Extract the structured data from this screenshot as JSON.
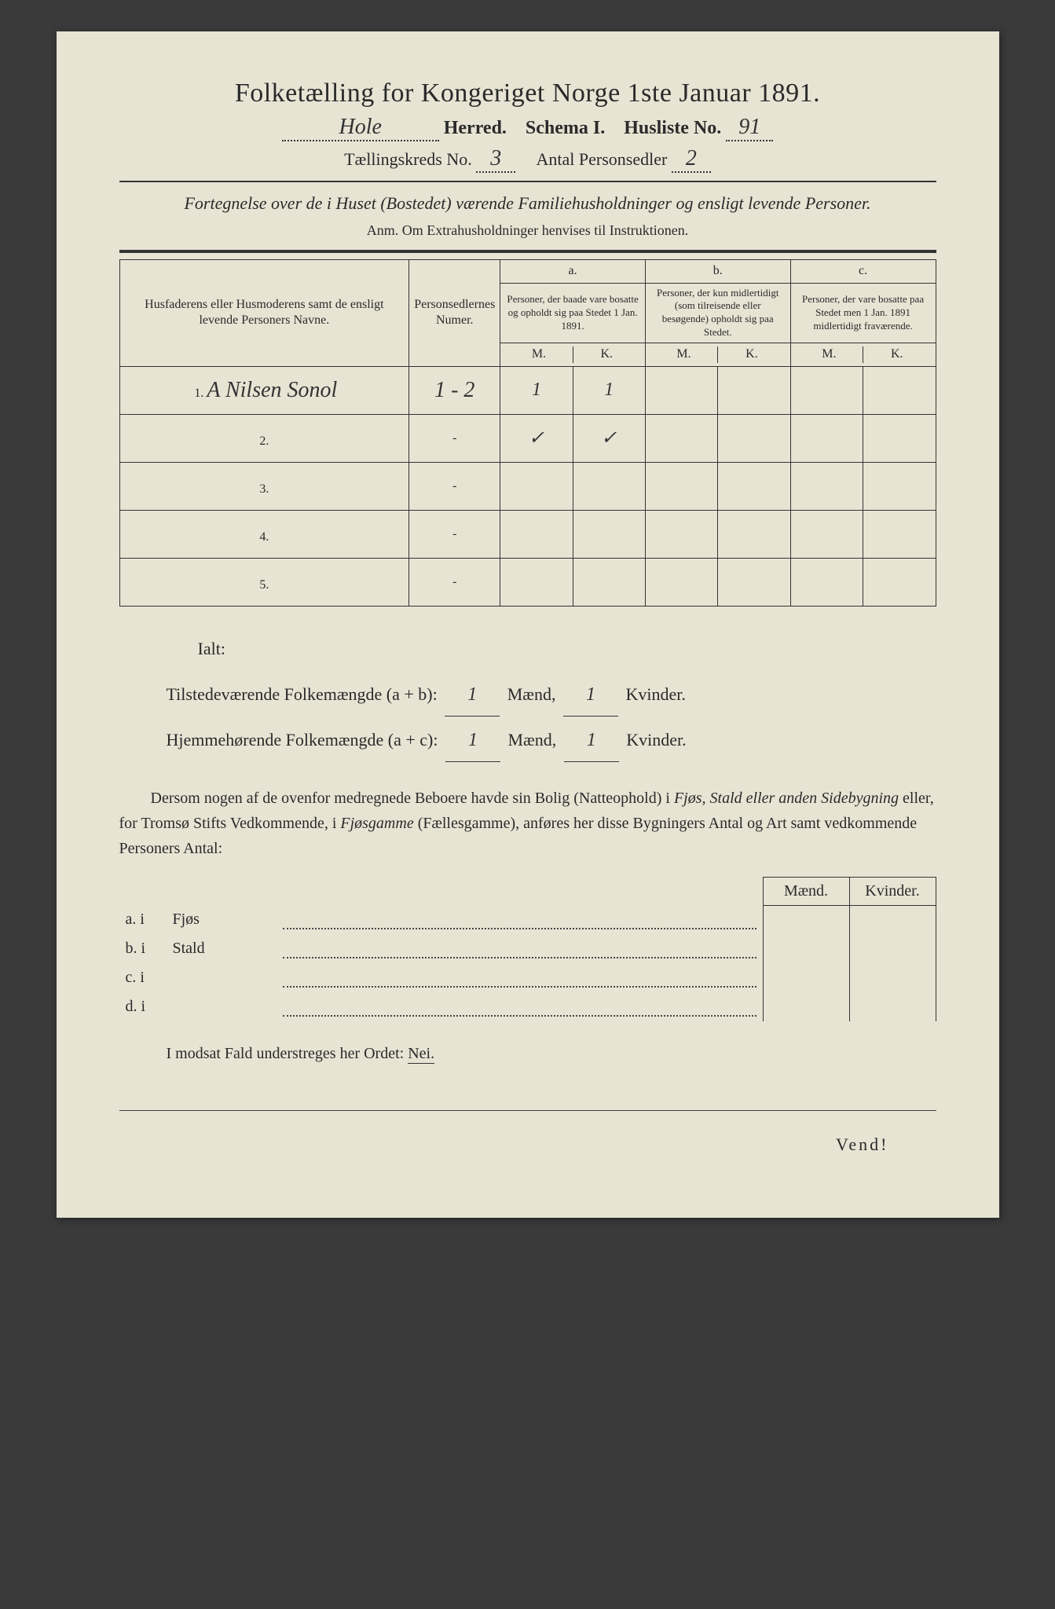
{
  "title": "Folketælling for Kongeriget Norge 1ste Januar 1891.",
  "header": {
    "herred_value": "Hole",
    "herred_label": "Herred.",
    "schema_label": "Schema I.",
    "husliste_label": "Husliste No.",
    "husliste_value": "91",
    "taellingskreds_label": "Tællingskreds No.",
    "taellingskreds_value": "3",
    "antal_label": "Antal Personsedler",
    "antal_value": "2"
  },
  "fortegnelse": "Fortegnelse over de i Huset (Bostedet) værende Familiehusholdninger og ensligt levende Personer.",
  "anm": "Anm. Om Extrahusholdninger henvises til Instruktionen.",
  "table": {
    "col1": "Husfaderens eller Husmoderens samt de ensligt levende Personers Navne.",
    "col2": "Personsedlernes Numer.",
    "col_a_label": "a.",
    "col_a": "Personer, der baade vare bosatte og opholdt sig paa Stedet 1 Jan. 1891.",
    "col_b_label": "b.",
    "col_b": "Personer, der kun midlertidigt (som tilreisende eller besøgende) opholdt sig paa Stedet.",
    "col_c_label": "c.",
    "col_c": "Personer, der vare bosatte paa Stedet men 1 Jan. 1891 midlertidigt fraværende.",
    "m_label": "M.",
    "k_label": "K.",
    "rows": [
      {
        "num": "1.",
        "name": "A Nilsen Sonol",
        "numer": "1 - 2",
        "a_m": "1",
        "a_k": "1",
        "b_m": "",
        "b_k": "",
        "c_m": "",
        "c_k": ""
      },
      {
        "num": "2.",
        "name": "",
        "numer": "-",
        "a_m": "✓",
        "a_k": "✓",
        "b_m": "",
        "b_k": "",
        "c_m": "",
        "c_k": ""
      },
      {
        "num": "3.",
        "name": "",
        "numer": "-",
        "a_m": "",
        "a_k": "",
        "b_m": "",
        "b_k": "",
        "c_m": "",
        "c_k": ""
      },
      {
        "num": "4.",
        "name": "",
        "numer": "-",
        "a_m": "",
        "a_k": "",
        "b_m": "",
        "b_k": "",
        "c_m": "",
        "c_k": ""
      },
      {
        "num": "5.",
        "name": "",
        "numer": "-",
        "a_m": "",
        "a_k": "",
        "b_m": "",
        "b_k": "",
        "c_m": "",
        "c_k": ""
      }
    ]
  },
  "ialt": {
    "label": "Ialt:",
    "line1_label": "Tilstedeværende Folkemængde (a + b):",
    "line1_m": "1",
    "line1_k": "1",
    "line2_label": "Hjemmehørende Folkemængde (a + c):",
    "line2_m": "1",
    "line2_k": "1",
    "maend": "Mænd,",
    "kvinder": "Kvinder."
  },
  "dersom": {
    "text1": "Dersom nogen af de ovenfor medregnede Beboere havde sin Bolig (Natteophold) i ",
    "italic1": "Fjøs, Stald eller anden Sidebygning",
    "text2": " eller, for Tromsø Stifts Vedkommende, i ",
    "italic2": "Fjøsgamme",
    "text3": " (Fællesgamme), anføres her disse Bygningers Antal og Art samt vedkommende Personers Antal:"
  },
  "abcd": {
    "maend": "Mænd.",
    "kvinder": "Kvinder.",
    "rows": [
      {
        "label": "a. i",
        "name": "Fjøs"
      },
      {
        "label": "b. i",
        "name": "Stald"
      },
      {
        "label": "c. i",
        "name": ""
      },
      {
        "label": "d. i",
        "name": ""
      }
    ]
  },
  "modsat": {
    "text": "I modsat Fald understreges her Ordet: ",
    "nei": "Nei."
  },
  "vend": "Vend!",
  "colors": {
    "paper": "#e8e4d4",
    "ink": "#2a2a2a",
    "background": "#3a3a3a"
  }
}
